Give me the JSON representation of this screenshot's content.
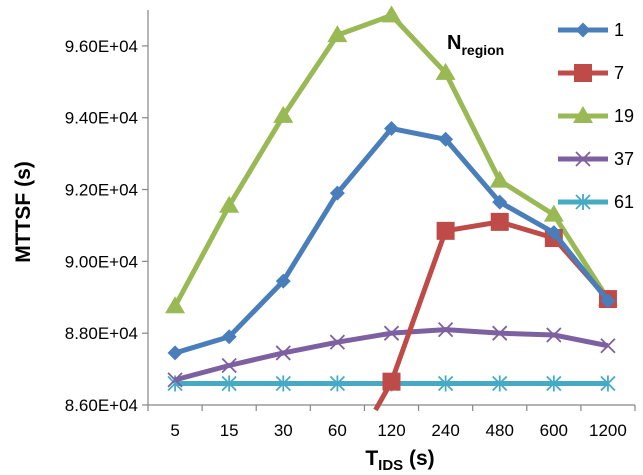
{
  "chart_data": {
    "type": "line",
    "xlabel": "T",
    "xlabel_sub": "IDS",
    "xlabel_unit": " (s)",
    "ylabel": "MTTSF (s)",
    "categories": [
      "5",
      "15",
      "30",
      "60",
      "120",
      "240",
      "480",
      "600",
      "1200"
    ],
    "ylim": [
      86000,
      97000
    ],
    "yticks": [
      86000,
      88000,
      90000,
      92000,
      94000,
      96000
    ],
    "ytick_labels": [
      "8.60E+04",
      "8.80E+04",
      "9.00E+04",
      "9.20E+04",
      "9.40E+04",
      "9.60E+04"
    ],
    "annotation": "N",
    "annotation_sub": "region",
    "legend_position": "right",
    "grid": false,
    "series": [
      {
        "name": "1",
        "color": "#4a7ebb",
        "marker": "diamond",
        "values": [
          87450,
          87900,
          89450,
          91900,
          93700,
          93400,
          91650,
          90800,
          88900
        ]
      },
      {
        "name": "7",
        "color": "#be4b48",
        "marker": "square",
        "values": [
          null,
          null,
          null,
          null,
          86650,
          90850,
          91100,
          90650,
          88950
        ],
        "clip_from_below": true
      },
      {
        "name": "19",
        "color": "#98b954",
        "marker": "triangle",
        "values": [
          88750,
          91550,
          94050,
          96300,
          96850,
          95250,
          92250,
          91300,
          88950
        ]
      },
      {
        "name": "37",
        "color": "#7d60a0",
        "marker": "x",
        "values": [
          86700,
          87100,
          87450,
          87750,
          88000,
          88100,
          88000,
          87950,
          87650
        ]
      },
      {
        "name": "61",
        "color": "#46aac5",
        "marker": "asterisk",
        "values": [
          86600,
          86600,
          86600,
          86600,
          86600,
          86600,
          86600,
          86600,
          86600
        ]
      }
    ]
  }
}
